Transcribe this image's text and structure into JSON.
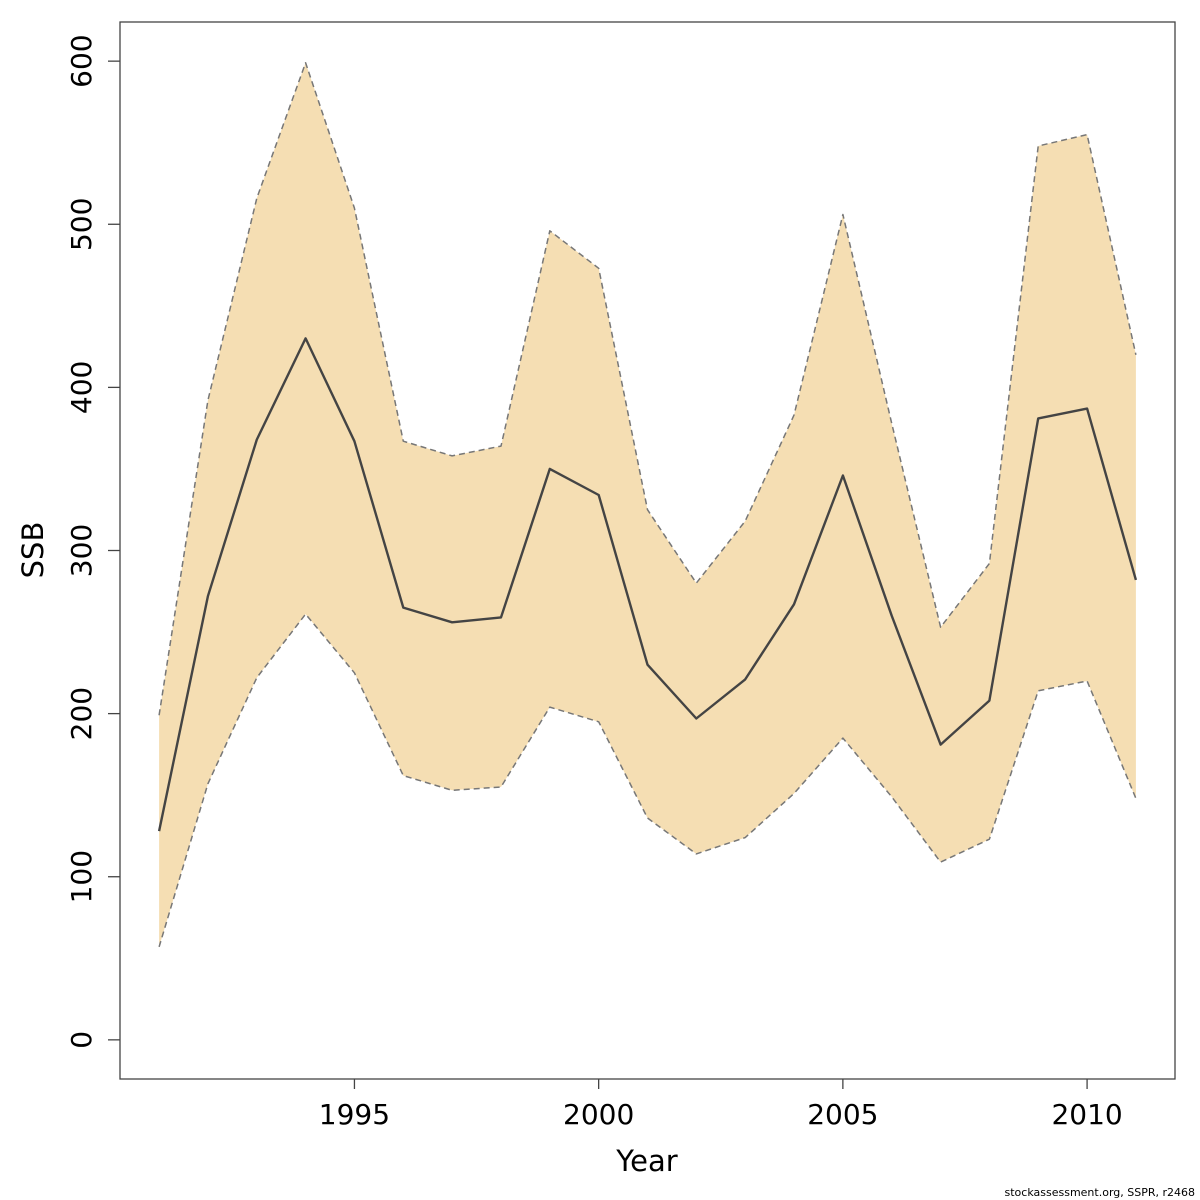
{
  "chart_data": {
    "type": "area",
    "xlabel": "Year",
    "ylabel": "SSB",
    "xlim": [
      1990.2,
      2011.8
    ],
    "ylim": [
      -24,
      624
    ],
    "x_ticks": [
      1995,
      2000,
      2005,
      2010
    ],
    "y_ticks": [
      0,
      100,
      200,
      300,
      400,
      500,
      600
    ],
    "grid": false,
    "legend": "none",
    "x": [
      1991,
      1992,
      1993,
      1994,
      1995,
      1996,
      1997,
      1998,
      1999,
      2000,
      2001,
      2002,
      2003,
      2004,
      2005,
      2006,
      2007,
      2008,
      2009,
      2010,
      2011
    ],
    "series": [
      {
        "role": "estimate",
        "style": "solid",
        "color": "#444444",
        "values": [
          128,
          272,
          368,
          430,
          367,
          265,
          256,
          259,
          350,
          334,
          230,
          197,
          221,
          267,
          346,
          260,
          181,
          208,
          381,
          387,
          282
        ]
      },
      {
        "role": "upper",
        "style": "dashed",
        "color": "#777777",
        "values": [
          199,
          392,
          516,
          599,
          510,
          367,
          358,
          364,
          496,
          473,
          325,
          280,
          318,
          383,
          506,
          378,
          253,
          292,
          548,
          555,
          420
        ]
      },
      {
        "role": "lower",
        "style": "dashed",
        "color": "#777777",
        "values": [
          57,
          157,
          222,
          261,
          225,
          162,
          153,
          155,
          204,
          195,
          136,
          114,
          124,
          151,
          185,
          149,
          109,
          123,
          214,
          220,
          148
        ]
      }
    ],
    "band_color": "#F5DEB3",
    "credit": "stockassessment.org, SSPR, r2468"
  }
}
